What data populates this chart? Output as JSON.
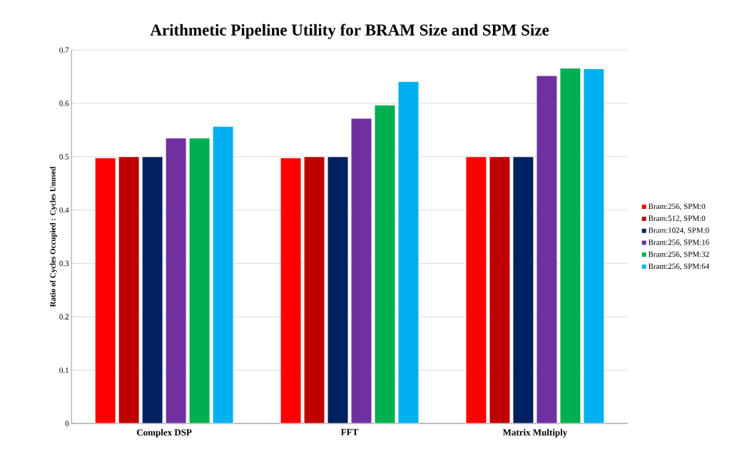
{
  "chart_data": {
    "type": "bar",
    "title": "Arithmetic Pipeline Utility for BRAM Size and SPM Size",
    "ylabel": "Ratio of Cycles Occupied : Cycles Unused",
    "categories": [
      "Complex DSP",
      "FFT",
      "Matrix Multiply"
    ],
    "series": [
      {
        "name": "Bram:256, SPM:0",
        "color": "#ff0000",
        "values": [
          0.498,
          0.498,
          0.5
        ]
      },
      {
        "name": "Bram:512, SPM:0",
        "color": "#c00000",
        "values": [
          0.5,
          0.5,
          0.5
        ]
      },
      {
        "name": "Bram:1024, SPM:0",
        "color": "#002060",
        "values": [
          0.5,
          0.5,
          0.5
        ]
      },
      {
        "name": "Bram:256, SPM:16",
        "color": "#7030a0",
        "values": [
          0.535,
          0.572,
          0.652
        ]
      },
      {
        "name": "Bram:256, SPM:32",
        "color": "#00b050",
        "values": [
          0.535,
          0.597,
          0.666
        ]
      },
      {
        "name": "Bram:256, SPM:64",
        "color": "#00b0f0",
        "values": [
          0.557,
          0.641,
          0.665
        ]
      }
    ],
    "ylim": [
      0,
      0.7
    ],
    "yticks": [
      0,
      0.1,
      0.2,
      0.3,
      0.4,
      0.5,
      0.6,
      0.7
    ],
    "grid": "y",
    "legend": "right"
  }
}
